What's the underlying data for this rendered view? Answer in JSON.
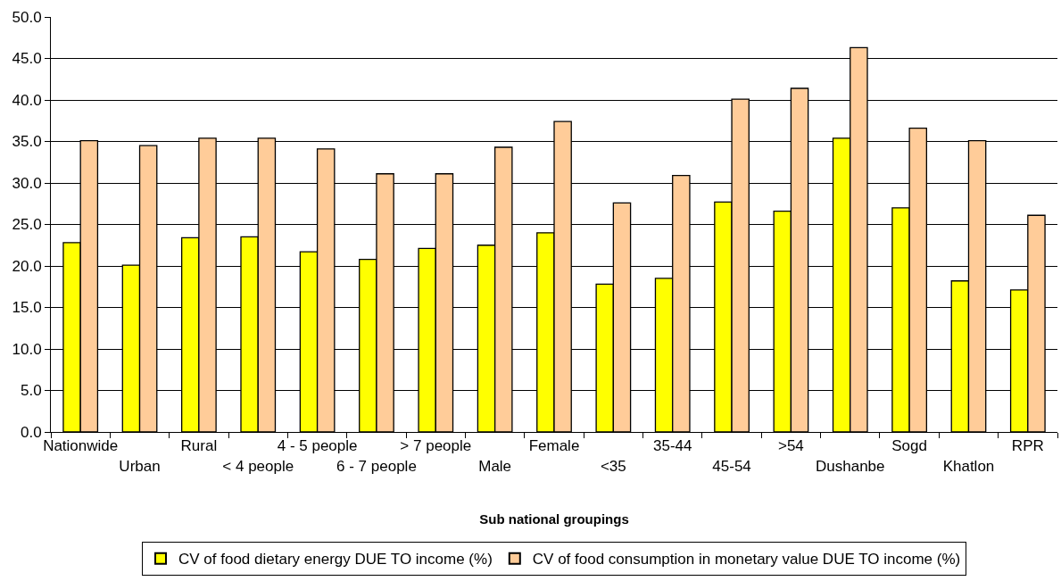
{
  "chart_data": {
    "type": "bar",
    "xlabel": "Sub national groupings",
    "categories": [
      "Nationwide",
      "Urban",
      "Rural",
      "< 4 people",
      "4 - 5 people",
      "6 - 7 people",
      "> 7 people",
      "Male",
      "Female",
      "<35",
      "35-44",
      "45-54",
      ">54",
      "Dushanbe",
      "Sogd",
      "Khatlon",
      "RPR"
    ],
    "series": [
      {
        "name": "CV of food dietary energy DUE TO income (%)",
        "color": "#ffff00",
        "values": [
          22.8,
          20.1,
          23.4,
          23.5,
          21.7,
          20.8,
          22.1,
          22.5,
          24.0,
          17.8,
          18.5,
          27.7,
          26.6,
          35.4,
          27.0,
          18.2,
          17.1
        ]
      },
      {
        "name": "CV of food consumption in monetary value DUE TO income (%)",
        "color": "#ffcc99",
        "values": [
          35.1,
          34.5,
          35.4,
          35.4,
          34.1,
          31.1,
          31.1,
          34.3,
          37.4,
          27.6,
          30.9,
          40.1,
          41.4,
          46.3,
          36.6,
          35.1,
          26.1
        ]
      }
    ],
    "ylim": [
      0,
      50
    ],
    "yticks": [
      {
        "value": 0,
        "label": "0.0"
      },
      {
        "value": 5,
        "label": "5.0"
      },
      {
        "value": 10,
        "label": "10.0"
      },
      {
        "value": 15,
        "label": "15.0"
      },
      {
        "value": 20,
        "label": "20.0"
      },
      {
        "value": 25,
        "label": "25.0"
      },
      {
        "value": 30,
        "label": "30.0"
      },
      {
        "value": 35,
        "label": "35.0"
      },
      {
        "value": 40,
        "label": "40.0"
      },
      {
        "value": 45,
        "label": "45.0"
      },
      {
        "value": 50,
        "label": "50.0"
      }
    ],
    "grid": "y",
    "legend": "bottom"
  }
}
